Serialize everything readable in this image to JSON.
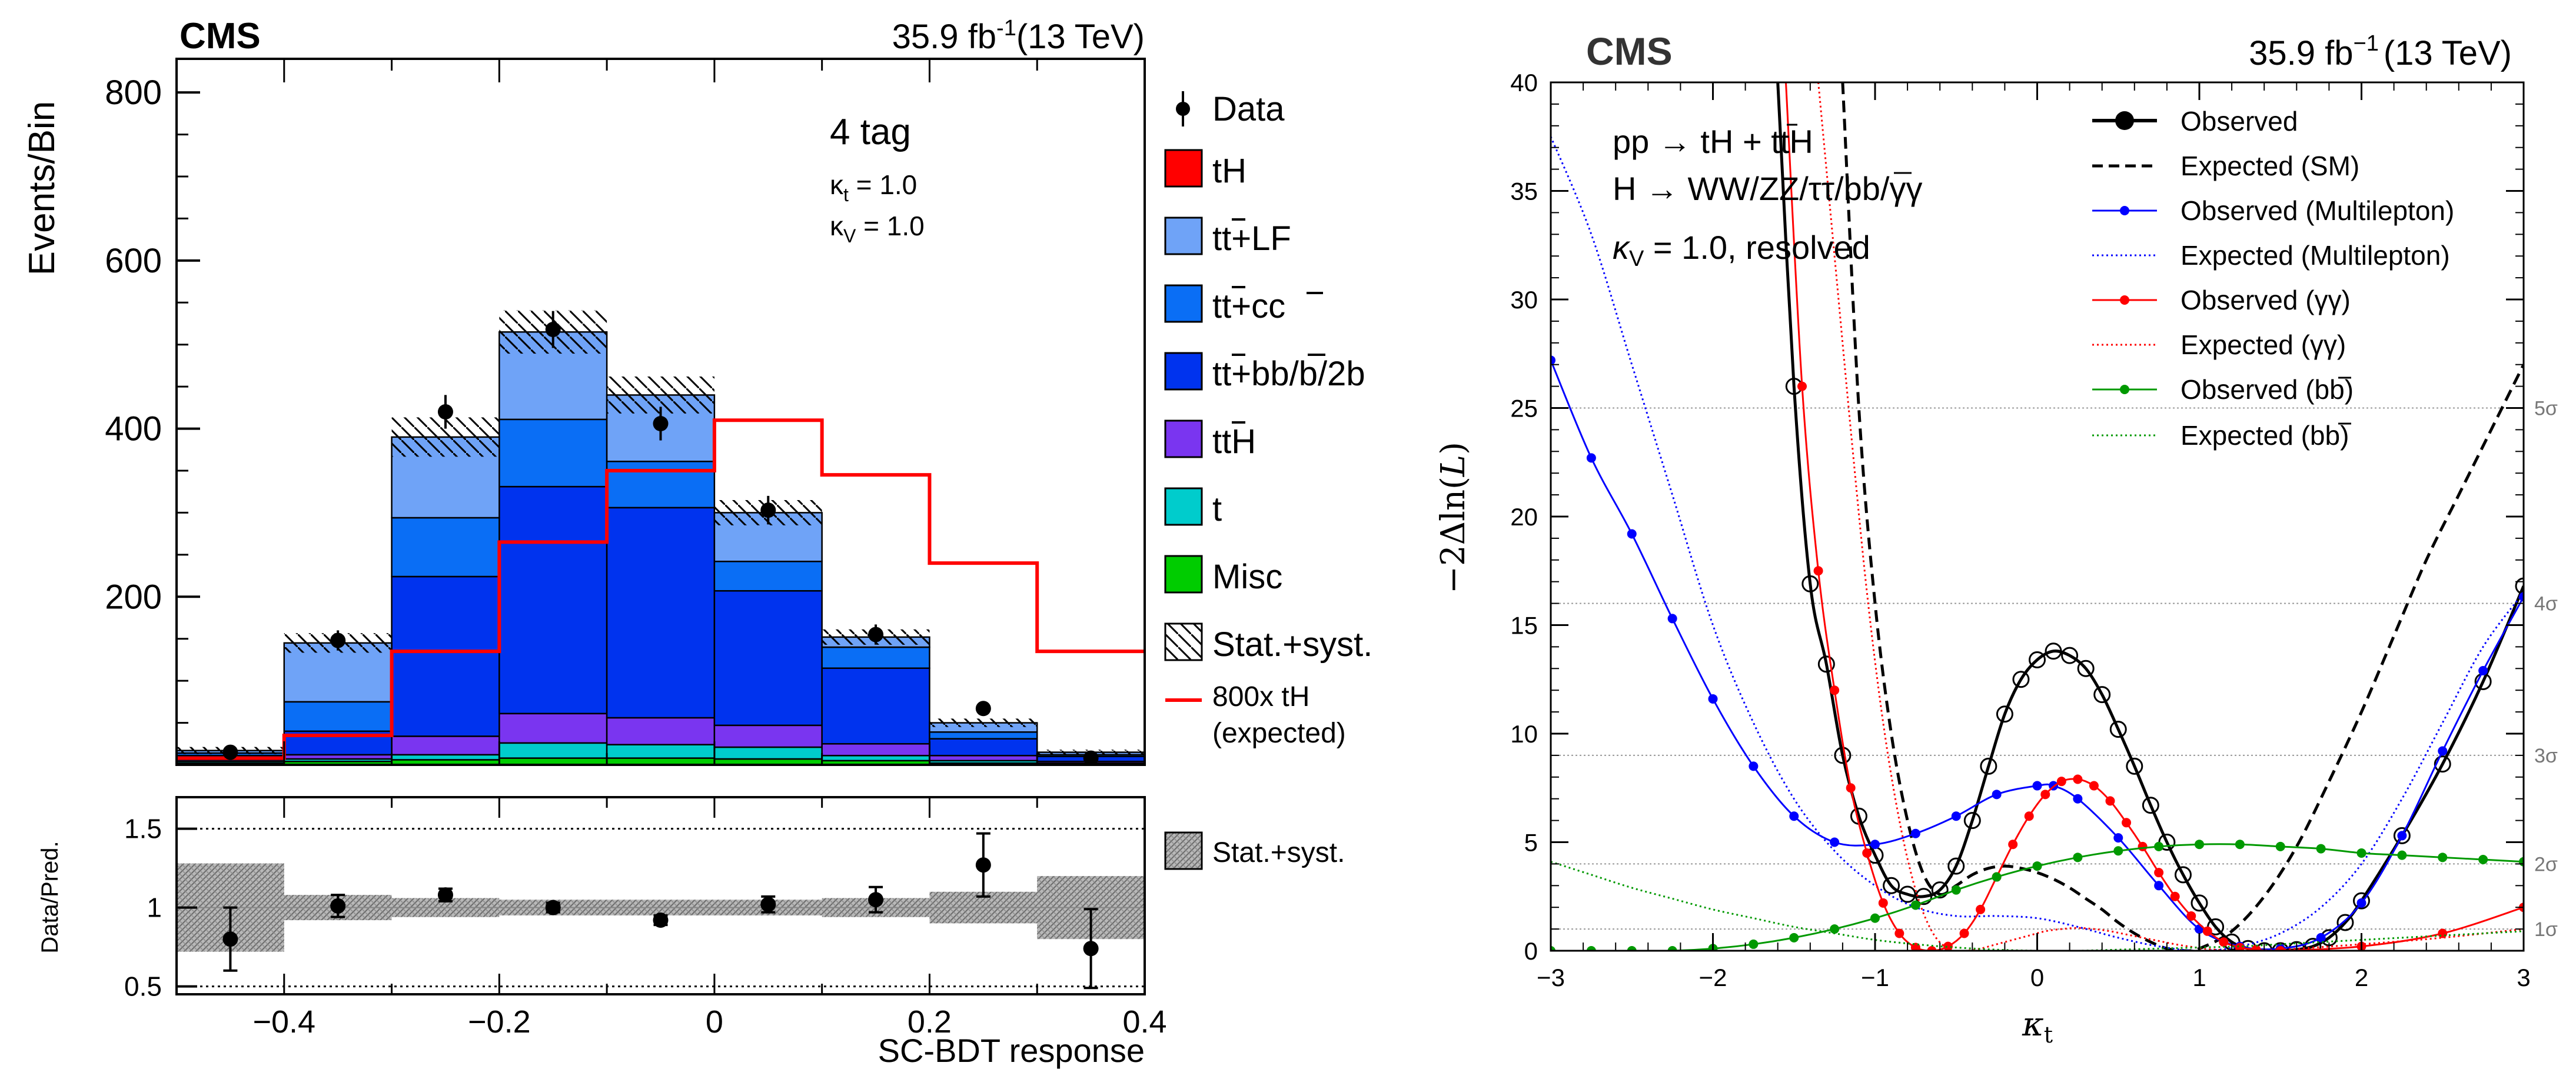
{
  "chart_data": [
    {
      "type": "bar",
      "stacked": true,
      "experiment": "CMS",
      "lumi_value": "35.9 fb",
      "lumi_exp": "-1",
      "energy": "(13 TeV)",
      "ylabel": "Events/Bin",
      "xlabel": "SC-BDT response",
      "category": "4 tag",
      "kappa_t": "κ_t = 1.0",
      "kappa_v": "κ_V = 1.0",
      "kappa_t_label": "κ",
      "kappa_t_sub": "t",
      "kappa_t_value": " = 1.0",
      "kappa_v_label": "κ",
      "kappa_v_sub": "V",
      "kappa_v_value": " = 1.0",
      "xlim": [
        -0.5,
        0.4
      ],
      "ylim": [
        0,
        840
      ],
      "xticks": [
        -0.4,
        -0.2,
        0,
        0.2,
        0.4
      ],
      "xtick_labels": [
        "−0.4",
        "−0.2",
        "0",
        "0.2",
        "0.4"
      ],
      "yticks": [
        200,
        400,
        600,
        800
      ],
      "bin_edges": [
        -0.5,
        -0.4,
        -0.3,
        -0.2,
        -0.1,
        0.0,
        0.1,
        0.2,
        0.3,
        0.4
      ],
      "series": [
        {
          "name": "Misc",
          "color": "#00cc00",
          "values": [
            2,
            4,
            6,
            8,
            8,
            7,
            5,
            2,
            1
          ]
        },
        {
          "name": "t",
          "color": "#00cccc",
          "values": [
            2,
            3,
            6,
            18,
            16,
            14,
            6,
            3,
            1
          ]
        },
        {
          "name": "tt̄H",
          "color": "#7a35f0",
          "values": [
            2,
            5,
            22,
            35,
            32,
            26,
            14,
            6,
            2
          ]
        },
        {
          "name": "tt̄+bb̄/b/2b",
          "color": "#0033ee",
          "values": [
            5,
            28,
            190,
            270,
            250,
            160,
            90,
            20,
            6
          ]
        },
        {
          "name": "tt̄+cc̄",
          "color": "#0a6ef5",
          "values": [
            3,
            35,
            70,
            80,
            55,
            35,
            25,
            8,
            2
          ]
        },
        {
          "name": "tt̄+LF",
          "color": "#6fa3f7",
          "values": [
            3,
            70,
            96,
            104,
            79,
            58,
            12,
            11,
            3
          ]
        }
      ],
      "data_points": [
        15,
        148,
        420,
        518,
        406,
        303,
        155,
        67,
        8
      ],
      "data_errors": [
        4,
        12,
        20,
        22,
        20,
        17,
        12,
        8,
        3
      ],
      "signal_800x_tH": [
        8,
        35,
        135,
        265,
        350,
        410,
        345,
        240,
        135
      ],
      "unc_fraction": [
        0.25,
        0.08,
        0.06,
        0.05,
        0.05,
        0.05,
        0.06,
        0.1,
        0.2
      ],
      "legend": [
        {
          "label": "Data",
          "kind": "data"
        },
        {
          "label": "tH",
          "kind": "box",
          "color": "#ff0000"
        },
        {
          "label": "tt̄+LF",
          "kind": "box",
          "color": "#6fa3f7"
        },
        {
          "label": "tt̄+cc̄",
          "kind": "box",
          "color": "#0a6ef5"
        },
        {
          "label": "tt̄+bb̄/b/2b",
          "kind": "box",
          "color": "#0033ee"
        },
        {
          "label": "tt̄H",
          "kind": "box",
          "color": "#7a35f0"
        },
        {
          "label": "t",
          "kind": "box",
          "color": "#00cccc"
        },
        {
          "label": "Misc",
          "kind": "box",
          "color": "#00cc00"
        },
        {
          "label": "Stat.+syst.",
          "kind": "hatch"
        },
        {
          "label": "800x tH",
          "label2": "(expected)",
          "kind": "line",
          "color": "#ff0000"
        }
      ],
      "legend_labels": {
        "data": "Data",
        "th": "tH",
        "tt_lf_a": "tt",
        "tt_lf_b": "+LF",
        "tt_cc_a": "tt",
        "tt_cc_b": "+c",
        "tt_cc_c": "c",
        "tt_bb_a": "tt",
        "tt_bb_b": "+b",
        "tt_bb_c": "b",
        "tt_bb_d": "/b/2b",
        "tth_a": "tt",
        "tth_b": "H",
        "t": "t",
        "misc": "Misc",
        "unc": "Stat.+syst.",
        "sig1": "800x tH",
        "sig2": "(expected)"
      }
    },
    {
      "type": "bar",
      "role": "ratio",
      "ylabel": "Data/Pred.",
      "ylim": [
        0.45,
        1.7
      ],
      "yticks": [
        0.5,
        1,
        1.5
      ],
      "ytick_labels": [
        "0.5",
        "1",
        "1.5"
      ],
      "bin_edges": [
        -0.5,
        -0.4,
        -0.3,
        -0.2,
        -0.1,
        0.0,
        0.1,
        0.2,
        0.3,
        0.4
      ],
      "ratio_values": [
        0.8,
        1.01,
        1.08,
        1.0,
        0.92,
        1.02,
        1.05,
        1.27,
        0.74
      ],
      "ratio_errors": [
        0.2,
        0.07,
        0.04,
        0.03,
        0.03,
        0.05,
        0.08,
        0.2,
        0.25
      ],
      "band_halfwidth": [
        0.28,
        0.08,
        0.06,
        0.05,
        0.05,
        0.05,
        0.06,
        0.1,
        0.2
      ],
      "legend": [
        {
          "label": "Stat.+syst.",
          "kind": "gray-hatch"
        }
      ]
    },
    {
      "type": "line",
      "experiment": "CMS",
      "lumi_value": "35.9 fb",
      "lumi_exp": "−1",
      "energy": "(13 TeV)",
      "xlabel": "κ_t",
      "ylabel": "−2Δln(L)",
      "ylabel_text": "−2Δln(",
      "ylabel_L": "L",
      "ylabel_close": ")",
      "xlabel_k": "κ",
      "xlabel_sub": "t",
      "xlim": [
        -3,
        3
      ],
      "ylim": [
        0,
        40
      ],
      "xticks": [
        -3,
        -2,
        -1,
        0,
        1,
        2,
        3
      ],
      "xtick_labels": [
        "−3",
        "−2",
        "−1",
        "0",
        "1",
        "2",
        "3"
      ],
      "yticks": [
        0,
        5,
        10,
        15,
        20,
        25,
        30,
        35,
        40
      ],
      "ytick_labels": [
        "0",
        "5",
        "10",
        "15",
        "20",
        "25",
        "30",
        "35",
        "40"
      ],
      "process_line1": "pp → tH + tt̄H",
      "process_line2": "H → WW/ZZ/ττ/bb̄/γγ",
      "process_line3": "κ_V = 1.0, resolved",
      "proc1_a": "pp → tH + t",
      "proc1_b": "t",
      "proc1_c": "H",
      "proc2_a": "H → WW/ZZ/ττ/b",
      "proc2_b": "b",
      "proc2_c": "/γγ",
      "proc3_k": "κ",
      "proc3_sub": "V",
      "proc3_rest": " = 1.0, resolved",
      "sigma_levels": [
        {
          "label": "1σ",
          "value": 1
        },
        {
          "label": "2σ",
          "value": 4
        },
        {
          "label": "3σ",
          "value": 9
        },
        {
          "label": "4σ",
          "value": 16
        },
        {
          "label": "5σ",
          "value": 25
        }
      ],
      "x": [
        -3.0,
        -2.75,
        -2.5,
        -2.25,
        -2.0,
        -1.75,
        -1.5,
        -1.25,
        -1.0,
        -0.75,
        -0.5,
        -0.25,
        0.0,
        0.25,
        0.5,
        0.75,
        1.0,
        1.25,
        1.5,
        1.75,
        2.0,
        2.25,
        2.5,
        2.75,
        3.0
      ],
      "series": [
        {
          "name": "Observed",
          "color": "#000000",
          "style": "solid-marker",
          "marker_size": 13,
          "width": 5,
          "x": [
            -1.6,
            -1.5,
            -1.4,
            -1.3,
            -1.2,
            -1.1,
            -1.0,
            -0.9,
            -0.8,
            -0.7,
            -0.6,
            -0.5,
            -0.4,
            -0.3,
            -0.2,
            -0.1,
            0.0,
            0.1,
            0.2,
            0.3,
            0.4,
            0.5,
            0.6,
            0.7,
            0.8,
            0.9,
            1.0,
            1.1,
            1.2,
            1.3,
            1.4,
            1.5,
            1.6,
            1.7,
            1.8,
            1.9,
            2.0,
            2.25,
            2.5,
            2.75,
            3.0
          ],
          "y": [
            40,
            26.0,
            16.9,
            13.2,
            9.0,
            6.2,
            4.4,
            3.0,
            2.6,
            2.5,
            2.8,
            3.9,
            6.0,
            8.5,
            10.9,
            12.5,
            13.4,
            13.8,
            13.6,
            13.0,
            11.8,
            10.2,
            8.5,
            6.7,
            5.0,
            3.5,
            2.2,
            1.1,
            0.4,
            0.1,
            0.0,
            0.0,
            0.05,
            0.2,
            0.6,
            1.3,
            2.3,
            5.3,
            8.6,
            12.4,
            16.8
          ]
        },
        {
          "name": "Expected (SM)",
          "color": "#000000",
          "style": "dashed",
          "width": 5,
          "x": [
            -1.2,
            -1.1,
            -1.0,
            -0.9,
            -0.8,
            -0.7,
            -0.6,
            -0.5,
            -0.4,
            -0.3,
            -0.2,
            -0.1,
            0.0,
            0.1,
            0.2,
            0.3,
            0.4,
            0.5,
            0.6,
            0.7,
            0.8,
            0.9,
            1.0,
            1.2,
            1.4,
            1.6,
            1.8,
            2.0,
            2.2,
            2.4,
            2.6,
            2.8,
            3.0
          ],
          "y": [
            40,
            25.0,
            16.0,
            10.0,
            6.0,
            3.5,
            2.6,
            3.0,
            3.5,
            3.8,
            3.9,
            3.8,
            3.6,
            3.3,
            2.9,
            2.4,
            1.9,
            1.3,
            0.8,
            0.4,
            0.1,
            0.0,
            0.1,
            0.9,
            2.5,
            4.8,
            7.8,
            11.0,
            14.5,
            18.0,
            21.0,
            24.0,
            27.0
          ]
        },
        {
          "name": "Observed (Multilepton)",
          "color": "#0000ff",
          "style": "solid-marker",
          "marker_size": 8,
          "width": 3,
          "x": [
            -3.0,
            -2.75,
            -2.5,
            -2.25,
            -2.0,
            -1.75,
            -1.5,
            -1.25,
            -1.0,
            -0.75,
            -0.5,
            -0.25,
            0.0,
            0.1,
            0.25,
            0.5,
            0.75,
            1.0,
            1.25,
            1.5,
            1.75,
            2.0,
            2.25,
            2.5,
            2.75,
            3.0
          ],
          "y": [
            27.2,
            22.7,
            19.2,
            15.3,
            11.6,
            8.5,
            6.2,
            5.0,
            4.9,
            5.4,
            6.2,
            7.2,
            7.6,
            7.6,
            7.0,
            5.2,
            3.0,
            1.0,
            0.2,
            0.1,
            0.6,
            2.2,
            5.3,
            9.2,
            12.9,
            16.3
          ]
        },
        {
          "name": "Expected (Multilepton)",
          "color": "#0000ff",
          "style": "dotted",
          "width": 3,
          "x": [
            -3.0,
            -2.75,
            -2.5,
            -2.25,
            -2.0,
            -1.75,
            -1.5,
            -1.25,
            -1.0,
            -0.75,
            -0.5,
            -0.25,
            0.0,
            0.25,
            0.5,
            0.75,
            1.0,
            1.25,
            1.5,
            1.75,
            2.0,
            2.25,
            2.5,
            2.75,
            3.0
          ],
          "y": [
            37.5,
            33.0,
            27.0,
            21.0,
            15.0,
            10.5,
            7.0,
            4.6,
            3.0,
            2.0,
            1.6,
            1.6,
            1.5,
            1.1,
            0.6,
            0.2,
            0.0,
            0.2,
            0.8,
            2.0,
            4.0,
            7.0,
            10.5,
            14.0,
            16.5
          ]
        },
        {
          "name": "Observed (γγ)",
          "color": "#ff0000",
          "style": "solid-marker",
          "marker_size": 8,
          "width": 3,
          "x": [
            -1.55,
            -1.45,
            -1.35,
            -1.25,
            -1.15,
            -1.05,
            -0.95,
            -0.85,
            -0.75,
            -0.65,
            -0.55,
            -0.45,
            -0.35,
            -0.25,
            -0.15,
            -0.05,
            0.05,
            0.15,
            0.25,
            0.35,
            0.45,
            0.55,
            0.65,
            0.75,
            0.85,
            0.95,
            1.05,
            1.15,
            1.25,
            1.35,
            1.5,
            2.0,
            2.5,
            3.0
          ],
          "y": [
            40,
            26.0,
            17.5,
            12.0,
            7.5,
            4.5,
            2.2,
            0.8,
            0.15,
            0.0,
            0.2,
            0.8,
            1.9,
            3.4,
            4.9,
            6.2,
            7.2,
            7.8,
            7.9,
            7.6,
            6.9,
            5.9,
            4.8,
            3.6,
            2.5,
            1.6,
            0.9,
            0.4,
            0.15,
            0.05,
            0.0,
            0.2,
            0.8,
            2.0
          ]
        },
        {
          "name": "Expected (γγ)",
          "color": "#ff0000",
          "style": "dotted",
          "width": 3,
          "x": [
            -1.35,
            -1.25,
            -1.15,
            -1.05,
            -0.95,
            -0.85,
            -0.75,
            -0.65,
            -0.55,
            -0.45,
            -0.35,
            -0.25,
            -0.15,
            -0.05,
            0.05,
            0.15,
            0.25,
            0.35,
            0.45,
            0.55,
            0.65,
            0.75,
            0.85,
            0.95,
            1.05,
            1.25,
            1.5,
            2.0,
            2.5,
            3.0
          ],
          "y": [
            40,
            32.0,
            24.0,
            16.5,
            10.5,
            6.0,
            2.8,
            0.9,
            0.1,
            0.0,
            0.1,
            0.3,
            0.5,
            0.7,
            0.9,
            1.0,
            1.05,
            1.0,
            0.9,
            0.75,
            0.6,
            0.45,
            0.3,
            0.18,
            0.08,
            0.0,
            0.05,
            0.3,
            0.6,
            1.0
          ]
        },
        {
          "name": "Observed (bb̄)",
          "color": "#009900",
          "style": "solid-marker",
          "marker_size": 8,
          "width": 3,
          "x": [
            -3.0,
            -2.75,
            -2.5,
            -2.25,
            -2.0,
            -1.75,
            -1.5,
            -1.25,
            -1.0,
            -0.75,
            -0.5,
            -0.25,
            0.0,
            0.25,
            0.5,
            0.75,
            1.0,
            1.25,
            1.5,
            1.75,
            2.0,
            2.25,
            2.5,
            2.75,
            3.0
          ],
          "y": [
            0.0,
            0.0,
            0.0,
            0.0,
            0.1,
            0.3,
            0.6,
            1.0,
            1.5,
            2.1,
            2.8,
            3.4,
            3.9,
            4.3,
            4.6,
            4.8,
            4.9,
            4.9,
            4.8,
            4.7,
            4.5,
            4.4,
            4.3,
            4.2,
            4.1
          ]
        },
        {
          "name": "Expected (bb̄)",
          "color": "#009900",
          "style": "dotted",
          "width": 3,
          "x": [
            -3.0,
            -2.75,
            -2.5,
            -2.25,
            -2.0,
            -1.75,
            -1.5,
            -1.25,
            -1.0,
            -0.75,
            -0.5,
            -0.25,
            0.0,
            0.25,
            0.5,
            0.75,
            1.0,
            1.25,
            1.5,
            1.75,
            2.0,
            2.25,
            2.5,
            2.75,
            3.0
          ],
          "y": [
            4.1,
            3.5,
            2.9,
            2.4,
            1.9,
            1.5,
            1.1,
            0.8,
            0.5,
            0.3,
            0.15,
            0.05,
            0.0,
            0.0,
            0.05,
            0.1,
            0.15,
            0.2,
            0.3,
            0.4,
            0.5,
            0.6,
            0.7,
            0.8,
            0.9
          ]
        }
      ],
      "legend": [
        {
          "label": "Observed"
        },
        {
          "label": "Expected (SM)"
        },
        {
          "label": "Observed (Multilepton)"
        },
        {
          "label": "Expected (Multilepton)"
        },
        {
          "label": "Observed (γγ)"
        },
        {
          "label": "Expected (γγ)"
        },
        {
          "label": "Observed (bb̄)"
        },
        {
          "label": "Expected (bb̄)"
        }
      ],
      "legend_labels": {
        "obs": "Observed",
        "exp": "Expected (SM)",
        "obs_ml": "Observed (Multilepton)",
        "exp_ml": "Expected (Multilepton)",
        "obs_gg": "Observed (γγ)",
        "exp_gg": "Expected (γγ)",
        "obs_bb_a": "Observed (b",
        "obs_bb_b": "b",
        "obs_bb_c": ")",
        "exp_bb_a": "Expected (b",
        "exp_bb_b": "b",
        "exp_bb_c": ")"
      }
    }
  ]
}
